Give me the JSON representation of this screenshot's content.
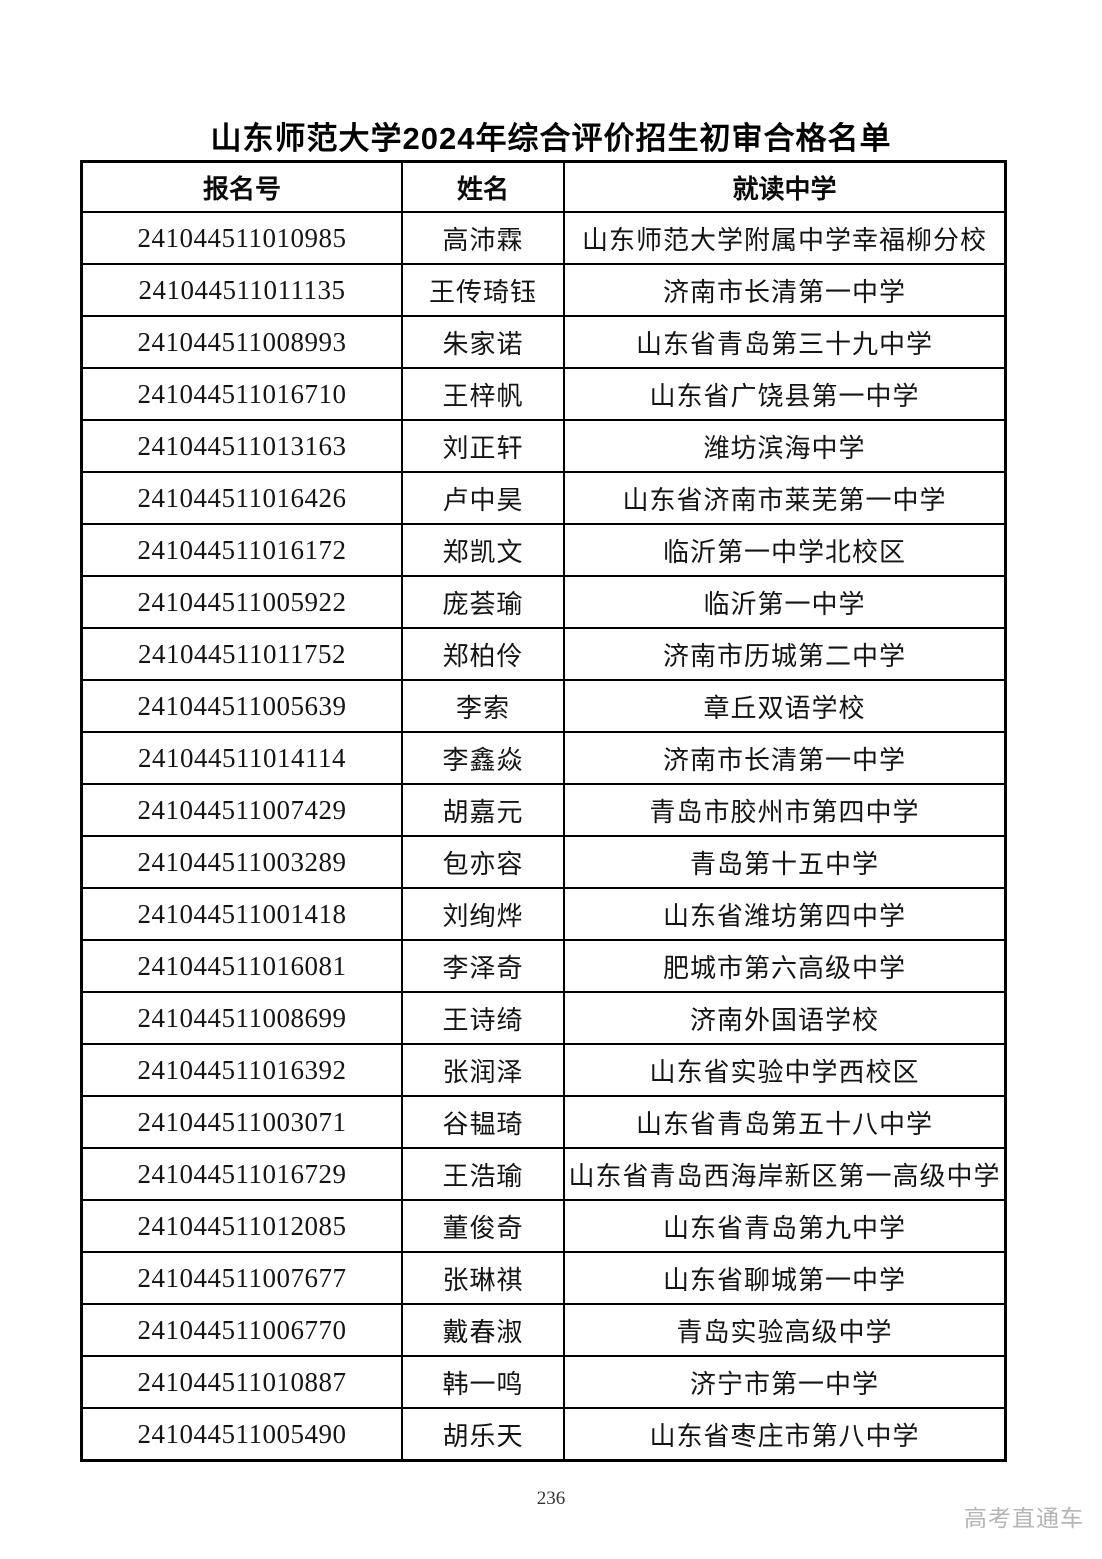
{
  "page": {
    "title": "山东师范大学2024年综合评价招生初审合格名单",
    "page_number": "236",
    "watermark": "高考直通车"
  },
  "table": {
    "headers": [
      "报名号",
      "姓名",
      "就读中学"
    ],
    "rows": [
      {
        "reg_no": "241044511010985",
        "name": "高沛霖",
        "school": "山东师范大学附属中学幸福柳分校"
      },
      {
        "reg_no": "241044511011135",
        "name": "王传琦钰",
        "school": "济南市长清第一中学"
      },
      {
        "reg_no": "241044511008993",
        "name": "朱家诺",
        "school": "山东省青岛第三十九中学"
      },
      {
        "reg_no": "241044511016710",
        "name": "王梓帆",
        "school": "山东省广饶县第一中学"
      },
      {
        "reg_no": "241044511013163",
        "name": "刘正轩",
        "school": "潍坊滨海中学"
      },
      {
        "reg_no": "241044511016426",
        "name": "卢中昊",
        "school": "山东省济南市莱芜第一中学"
      },
      {
        "reg_no": "241044511016172",
        "name": "郑凯文",
        "school": "临沂第一中学北校区"
      },
      {
        "reg_no": "241044511005922",
        "name": "庞荟瑜",
        "school": "临沂第一中学"
      },
      {
        "reg_no": "241044511011752",
        "name": "郑柏伶",
        "school": "济南市历城第二中学"
      },
      {
        "reg_no": "241044511005639",
        "name": "李索",
        "school": "章丘双语学校"
      },
      {
        "reg_no": "241044511014114",
        "name": "李鑫焱",
        "school": "济南市长清第一中学"
      },
      {
        "reg_no": "241044511007429",
        "name": "胡嘉元",
        "school": "青岛市胶州市第四中学"
      },
      {
        "reg_no": "241044511003289",
        "name": "包亦容",
        "school": "青岛第十五中学"
      },
      {
        "reg_no": "241044511001418",
        "name": "刘绚烨",
        "school": "山东省潍坊第四中学"
      },
      {
        "reg_no": "241044511016081",
        "name": "李泽奇",
        "school": "肥城市第六高级中学"
      },
      {
        "reg_no": "241044511008699",
        "name": "王诗绮",
        "school": "济南外国语学校"
      },
      {
        "reg_no": "241044511016392",
        "name": "张润泽",
        "school": "山东省实验中学西校区"
      },
      {
        "reg_no": "241044511003071",
        "name": "谷韫琦",
        "school": "山东省青岛第五十八中学"
      },
      {
        "reg_no": "241044511016729",
        "name": "王浩瑜",
        "school": "山东省青岛西海岸新区第一高级中学"
      },
      {
        "reg_no": "241044511012085",
        "name": "董俊奇",
        "school": "山东省青岛第九中学"
      },
      {
        "reg_no": "241044511007677",
        "name": "张琳祺",
        "school": "山东省聊城第一中学"
      },
      {
        "reg_no": "241044511006770",
        "name": "戴春淑",
        "school": "青岛实验高级中学"
      },
      {
        "reg_no": "241044511010887",
        "name": "韩一鸣",
        "school": "济宁市第一中学"
      },
      {
        "reg_no": "241044511005490",
        "name": "胡乐天",
        "school": "山东省枣庄市第八中学"
      }
    ]
  },
  "colors": {
    "border": "#000000",
    "text": "#141414",
    "watermark": "#b5b5b5"
  }
}
